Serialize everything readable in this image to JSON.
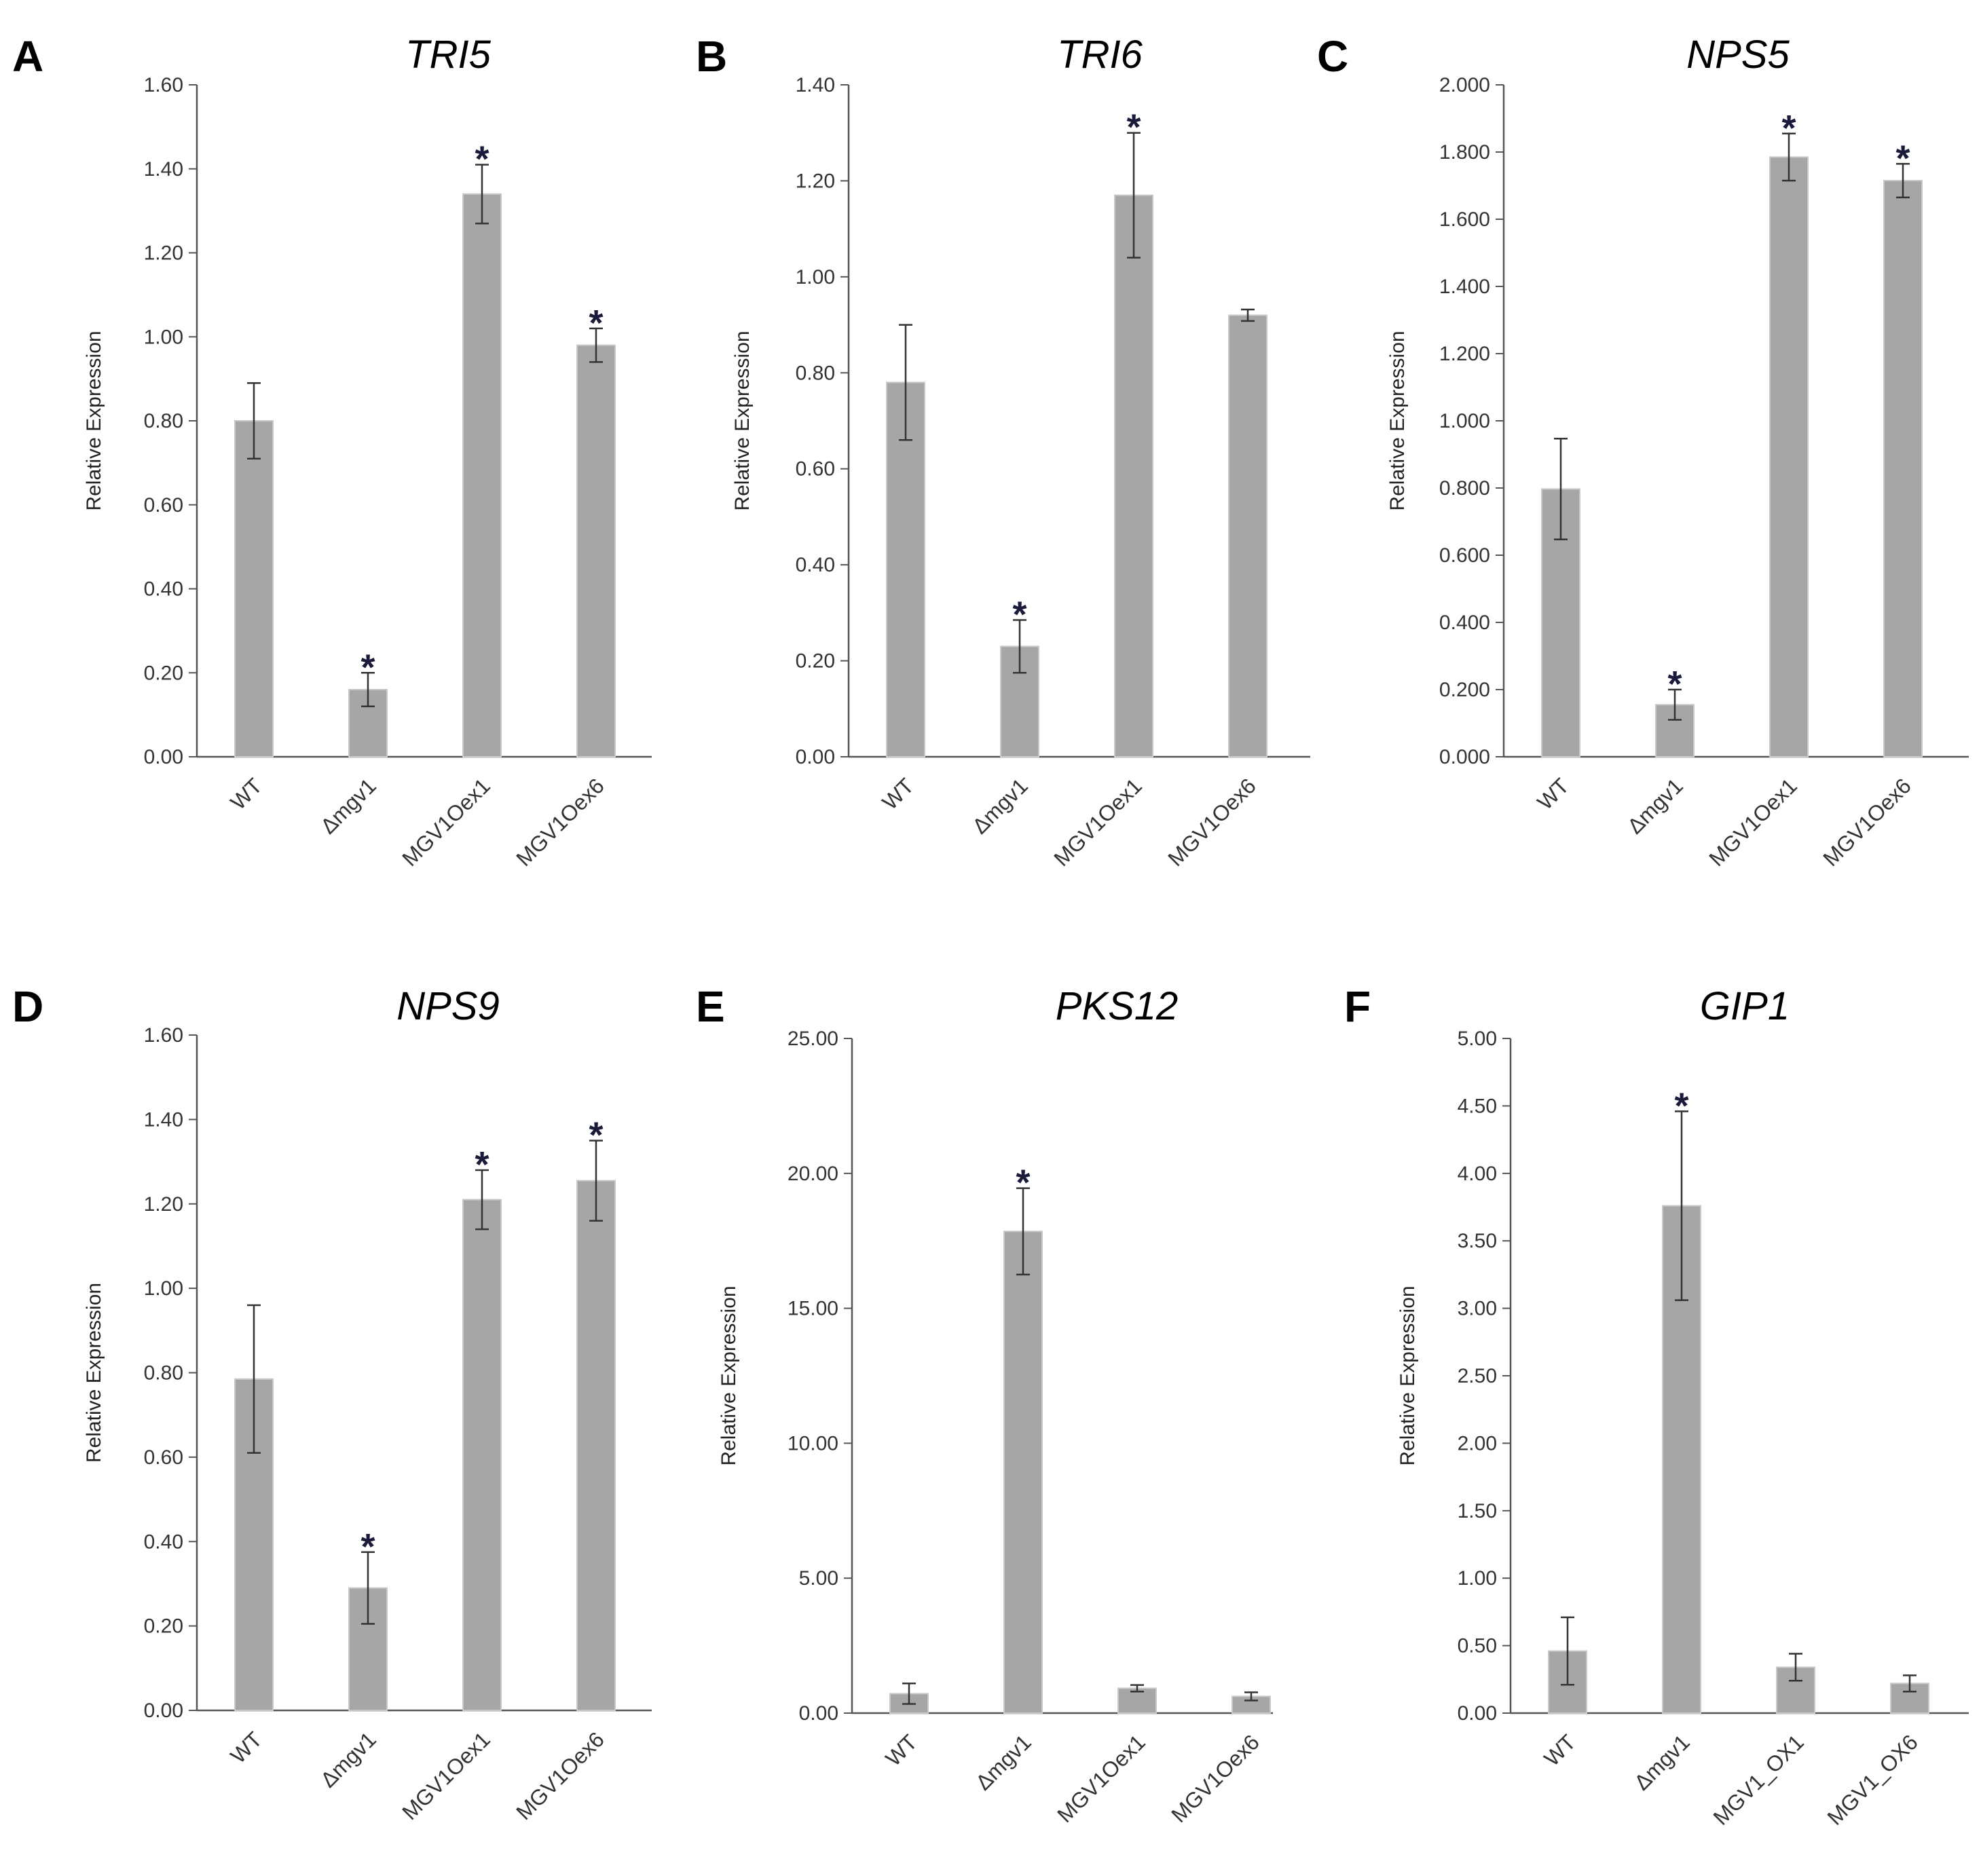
{
  "colors": {
    "bar": "#a6a6a6",
    "bar_edge": "#c8c8c8",
    "axis": "#555555",
    "error": "#333333",
    "star": "#1a1a3a"
  },
  "chart_data": [
    {
      "panel": "A",
      "type": "bar",
      "title": "TRI5",
      "ylabel": "Relative Expression",
      "xlabel": "",
      "categories": [
        "WT",
        "Δmgv1",
        "MGV1Oex1",
        "MGV1Oex6"
      ],
      "values": [
        0.8,
        0.16,
        1.34,
        0.98
      ],
      "errors": [
        0.09,
        0.04,
        0.07,
        0.04
      ],
      "significant": [
        false,
        true,
        true,
        true
      ],
      "significance_marker": "*",
      "ylim": [
        0,
        1.6
      ],
      "yticks": [
        "0.00",
        "0.20",
        "0.40",
        "0.60",
        "0.80",
        "1.00",
        "1.20",
        "1.40",
        "1.60"
      ]
    },
    {
      "panel": "B",
      "type": "bar",
      "title": "TRI6",
      "ylabel": "Relative Expression",
      "xlabel": "",
      "categories": [
        "WT",
        "Δmgv1",
        "MGV1Oex1",
        "MGV1Oex6"
      ],
      "values": [
        0.78,
        0.23,
        1.17,
        0.92
      ],
      "errors": [
        0.12,
        0.055,
        0.13,
        0.012
      ],
      "significant": [
        false,
        true,
        true,
        false
      ],
      "significance_marker": "*",
      "ylim": [
        0,
        1.4
      ],
      "yticks": [
        "0.00",
        "0.20",
        "0.40",
        "0.60",
        "0.80",
        "1.00",
        "1.20",
        "1.40"
      ]
    },
    {
      "panel": "C",
      "type": "bar",
      "title": "NPS5",
      "ylabel": "Relative Expression",
      "xlabel": "",
      "categories": [
        "WT",
        "Δmgv1",
        "MGV1Oex1",
        "MGV1Oex6"
      ],
      "values": [
        0.797,
        0.155,
        1.785,
        1.715
      ],
      "errors": [
        0.15,
        0.045,
        0.07,
        0.05
      ],
      "significant": [
        false,
        true,
        true,
        true
      ],
      "significance_marker": "*",
      "ylim": [
        0,
        2.0
      ],
      "yticks": [
        "0.000",
        "0.200",
        "0.400",
        "0.600",
        "0.800",
        "1.000",
        "1.200",
        "1.400",
        "1.600",
        "1.800",
        "2.000"
      ]
    },
    {
      "panel": "D",
      "type": "bar",
      "title": "NPS9",
      "ylabel": "Relative Expression",
      "xlabel": "",
      "categories": [
        "WT",
        "Δmgv1",
        "MGV1Oex1",
        "MGV1Oex6"
      ],
      "values": [
        0.785,
        0.29,
        1.21,
        1.255
      ],
      "errors": [
        0.175,
        0.085,
        0.07,
        0.095
      ],
      "significant": [
        false,
        true,
        true,
        true
      ],
      "significance_marker": "*",
      "ylim": [
        0,
        1.6
      ],
      "yticks": [
        "0.00",
        "0.20",
        "0.40",
        "0.60",
        "0.80",
        "1.00",
        "1.20",
        "1.40",
        "1.60"
      ]
    },
    {
      "panel": "E",
      "type": "bar",
      "title": "PKS12",
      "ylabel": "Relative Expression",
      "xlabel": "",
      "categories": [
        "WT",
        "Δmgv1",
        "MGV1Oex1",
        "MGV1Oex6"
      ],
      "values": [
        0.72,
        17.85,
        0.92,
        0.62
      ],
      "errors": [
        0.38,
        1.6,
        0.12,
        0.15
      ],
      "significant": [
        false,
        true,
        false,
        false
      ],
      "significance_marker": "*",
      "ylim": [
        0,
        25
      ],
      "yticks": [
        "0.00",
        "5.00",
        "10.00",
        "15.00",
        "20.00",
        "25.00"
      ]
    },
    {
      "panel": "F",
      "type": "bar",
      "title": "GIP1",
      "ylabel": "Relative Expression",
      "xlabel": "",
      "categories": [
        "WT",
        "Δmgv1",
        "MGV1_OX1",
        "MGV1_OX6"
      ],
      "values": [
        0.46,
        3.76,
        0.34,
        0.22
      ],
      "errors": [
        0.25,
        0.7,
        0.1,
        0.06
      ],
      "significant": [
        false,
        true,
        false,
        false
      ],
      "significance_marker": "*",
      "ylim": [
        0,
        5
      ],
      "yticks": [
        "0.00",
        "0.50",
        "1.00",
        "1.50",
        "2.00",
        "2.50",
        "3.00",
        "3.50",
        "4.00",
        "4.50",
        "5.00"
      ]
    }
  ]
}
